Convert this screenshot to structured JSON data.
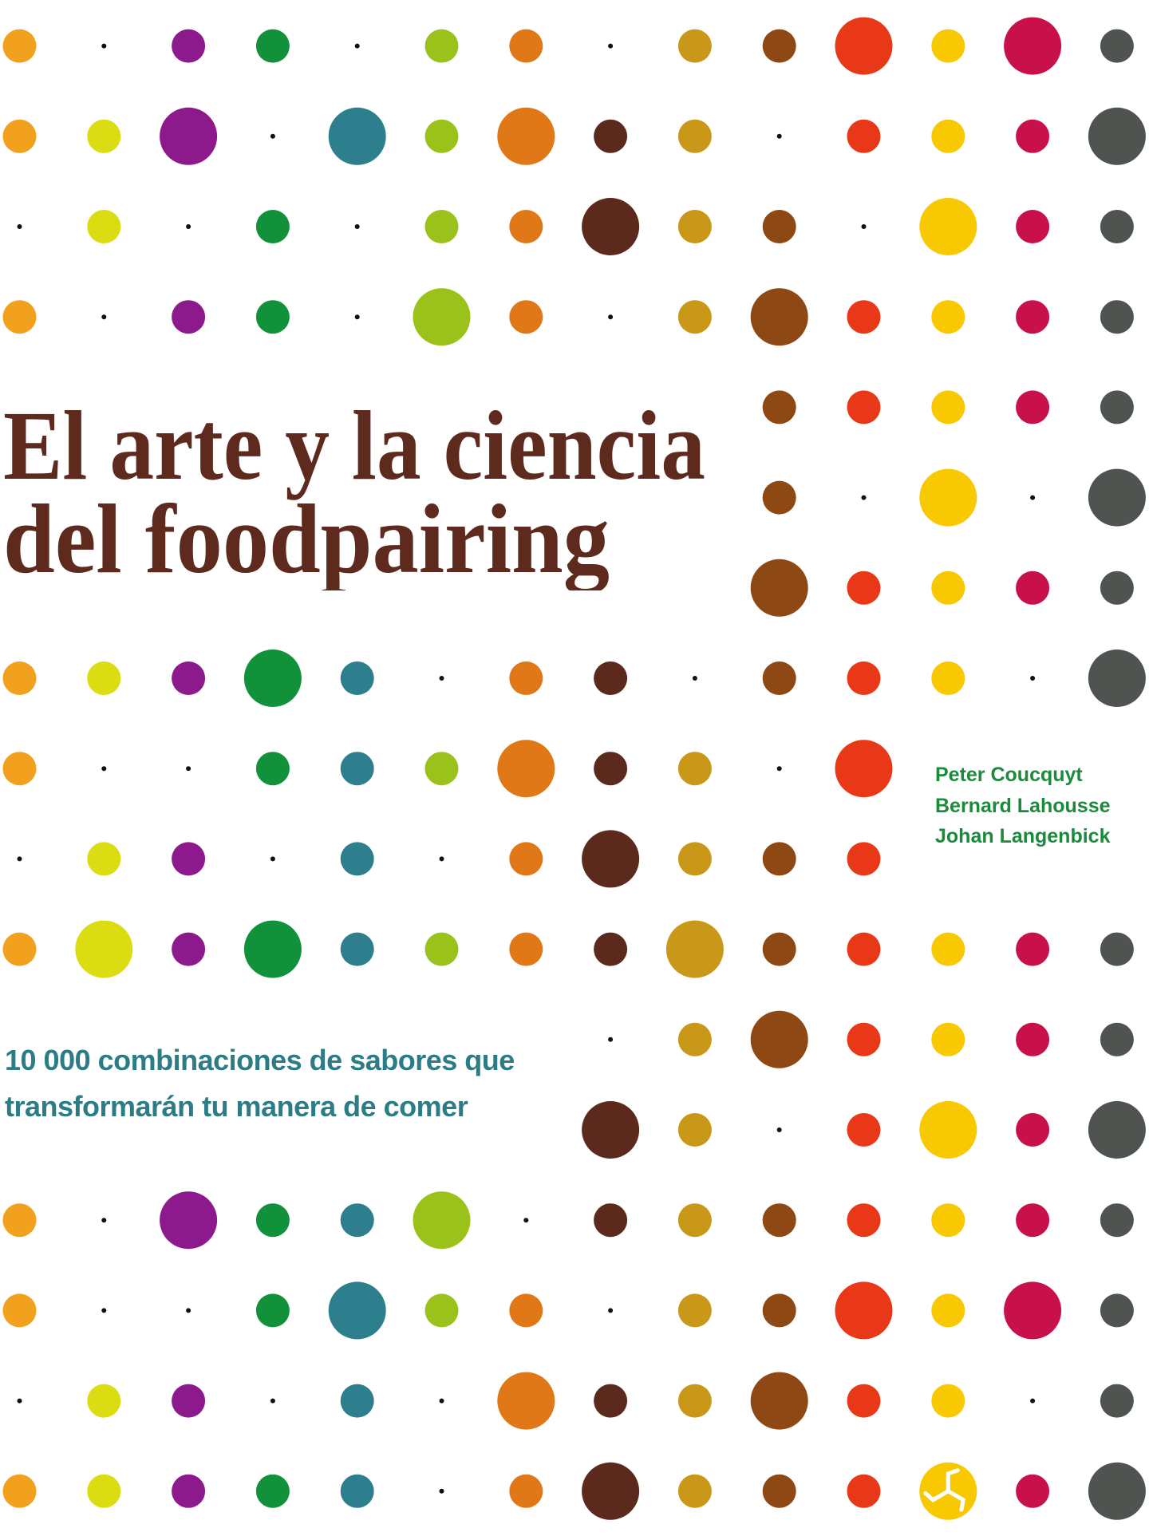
{
  "cover": {
    "title_lines": [
      "El arte y la ciencia",
      "del foodpairing"
    ],
    "subtitle_lines": [
      "10 000 combinaciones de sabores que",
      "transformarán tu manera de comer"
    ],
    "authors": [
      "Peter Coucquyt",
      "Bernard Lahousse",
      "Johan Langenbick"
    ],
    "publisher_logo": "triskelion-icon"
  },
  "colors": {
    "title": "#5e2a1e",
    "subtitle": "#2b7c85",
    "authors": "#1b8a3b",
    "columns": [
      "#f2a11e",
      "#dcdc12",
      "#8c1a8c",
      "#10913a",
      "#2d7f8e",
      "#9ac21a",
      "#e07818",
      "#5c2a1c",
      "#c99818",
      "#8e4814",
      "#e83818",
      "#f8c800",
      "#c8104a",
      "#4f5450"
    ]
  },
  "dot_pattern": [
    "s.ss.ss.ssLsLs",
    "ssL.LsLss.sssL",
    ".s.s.ssLss.Lss",
    "s.ss.Ls.sLssss",
    "         sssss",
    "         s.L.L",
    "         Lssss",
    "sssLs.ss.sss.L",
    "s..sssLss.L   ",
    ".ss.s.sLsss   ",
    "sLsLssssLsssss",
    "       .sLssss",
    "       Ls.sLsL",
    "s.LssL.sssssss",
    "s..sLss.ssLsLs",
    ".ss.s.LssLss.s",
    "sssss.sLsssGsL"
  ]
}
